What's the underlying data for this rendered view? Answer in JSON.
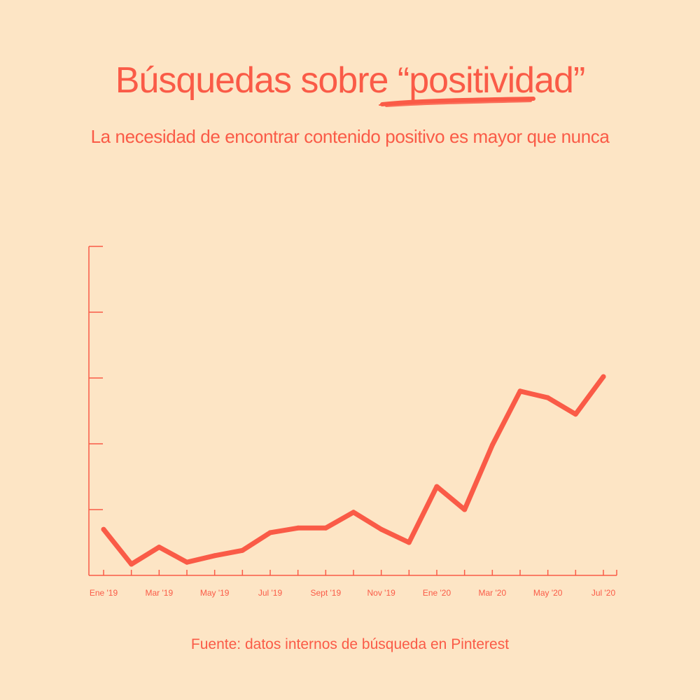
{
  "header": {
    "title_main": "Búsquedas sobre ",
    "title_highlight": "“positividad”",
    "subtitle": "La necesidad de encontrar contenido positivo es mayor que nunca"
  },
  "footer": {
    "source": "Fuente: datos internos de búsqueda en Pinterest"
  },
  "colors": {
    "background": "#fde5c5",
    "accent": "#fa5b47"
  },
  "chart_data": {
    "type": "line",
    "title": "",
    "xlabel": "",
    "ylabel": "",
    "grid": false,
    "ylim": [
      0,
      5
    ],
    "x_ticks": [
      "Ene '19",
      "Mar '19",
      "May '19",
      "Jul '19",
      "Sept '19",
      "Nov '19",
      "Ene '20",
      "Mar '20",
      "May '20",
      "Jul '20"
    ],
    "series": [
      {
        "values": [
          0.7,
          0.17,
          0.43,
          0.2,
          0.3,
          0.38,
          0.65,
          0.72,
          0.72,
          0.96,
          0.7,
          0.5,
          1.35,
          1.0,
          1.98,
          2.8,
          2.7,
          2.45,
          3.02
        ]
      }
    ]
  }
}
